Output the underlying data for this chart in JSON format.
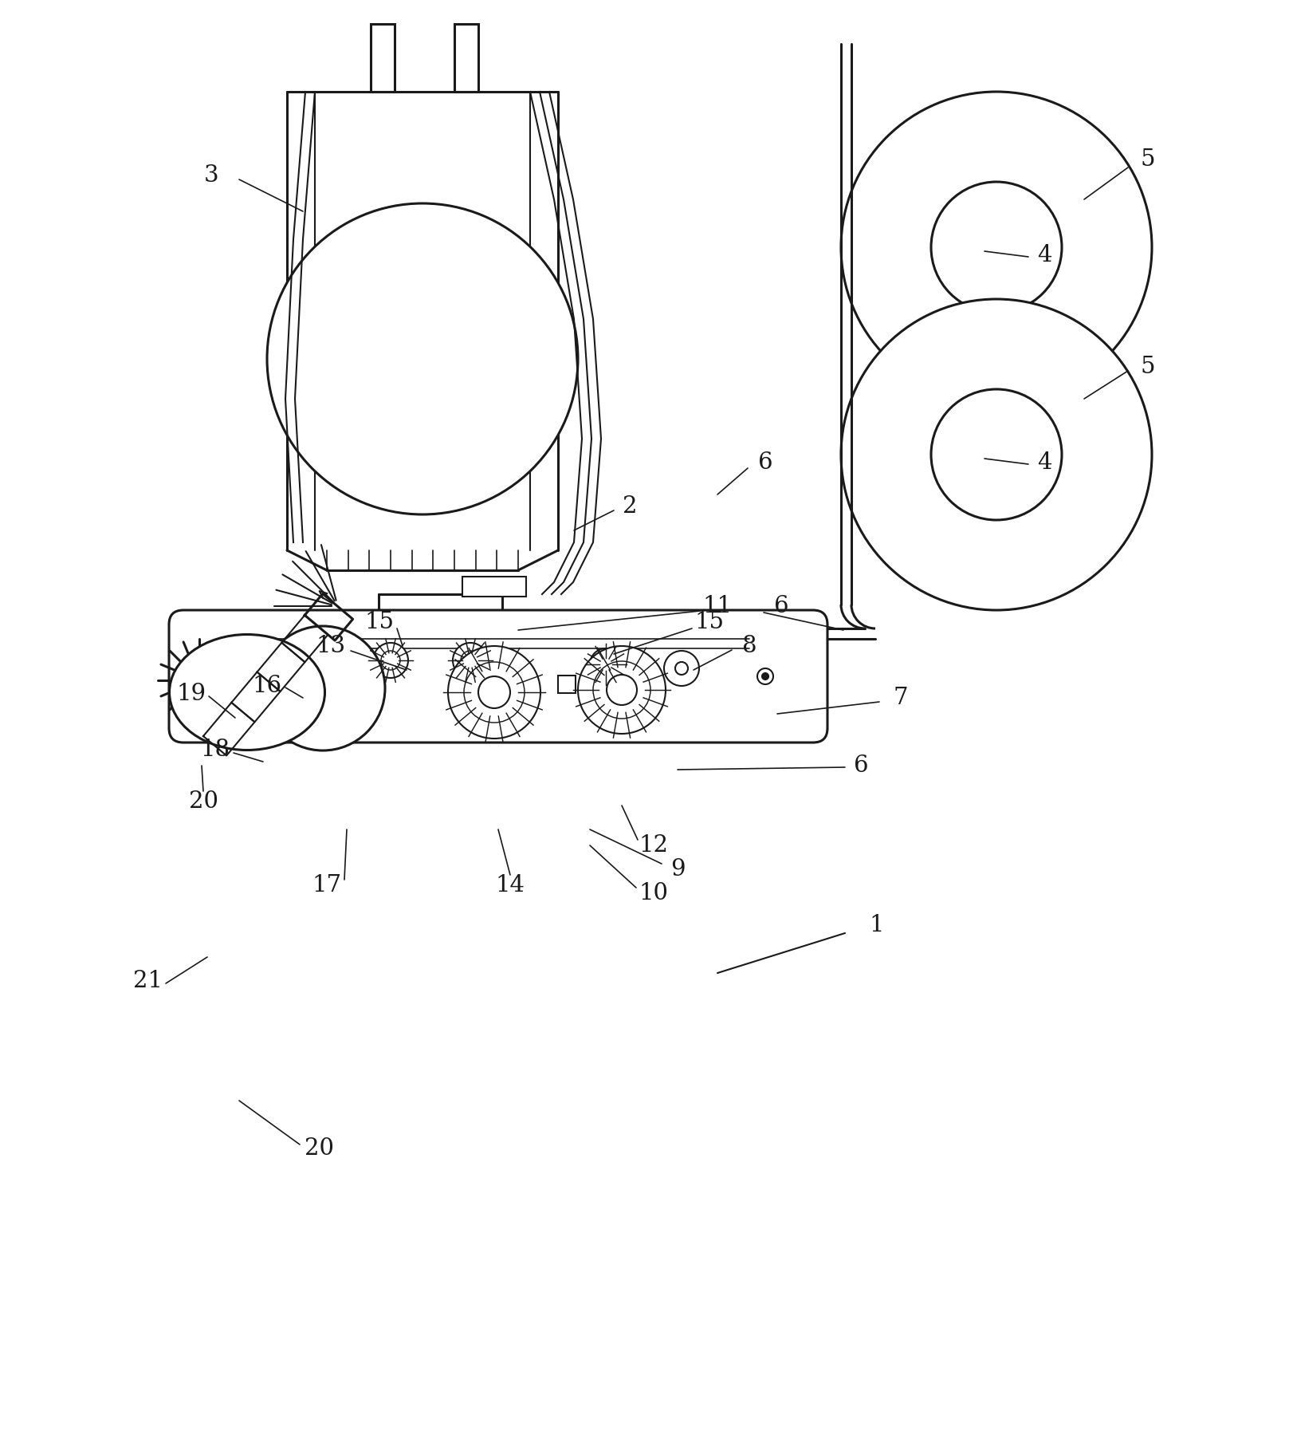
{
  "bg_color": "#ffffff",
  "lc": "#1a1a1a",
  "lw": 1.5,
  "lw2": 2.2,
  "figsize": [
    16.17,
    17.98
  ],
  "dpi": 100
}
